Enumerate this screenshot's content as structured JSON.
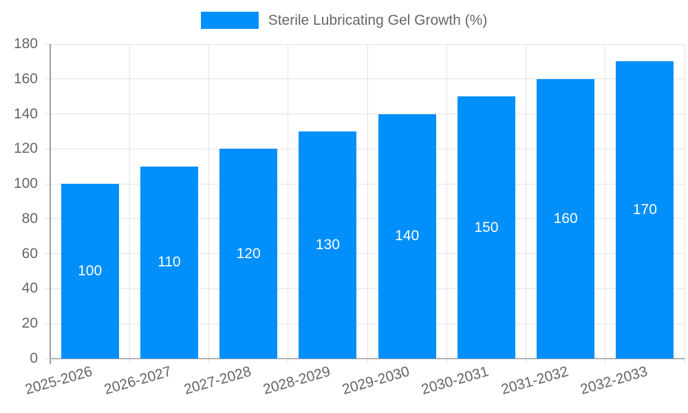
{
  "chart_data": {
    "type": "bar",
    "title": "Sterile Lubricating Gel Growth (%)",
    "legend_label": "Sterile Lubricating Gel Growth (%)",
    "legend_position": "top-center",
    "categories": [
      "2025-2026",
      "2026-2027",
      "2027-2028",
      "2028-2029",
      "2029-2030",
      "2030-2031",
      "2031-2032",
      "2032-2033"
    ],
    "values": [
      100,
      110,
      120,
      130,
      140,
      150,
      160,
      170
    ],
    "xlabel": "",
    "ylabel": "",
    "ylim": [
      0,
      180
    ],
    "ytick_step": 20,
    "grid": true,
    "bar_labels_shown": true,
    "colors": {
      "bar": "#008FFB",
      "bar_label": "#ffffff",
      "axis_text": "#666666",
      "gridline": "#e3e3e3",
      "axis_line": "#9b9b9b"
    }
  }
}
